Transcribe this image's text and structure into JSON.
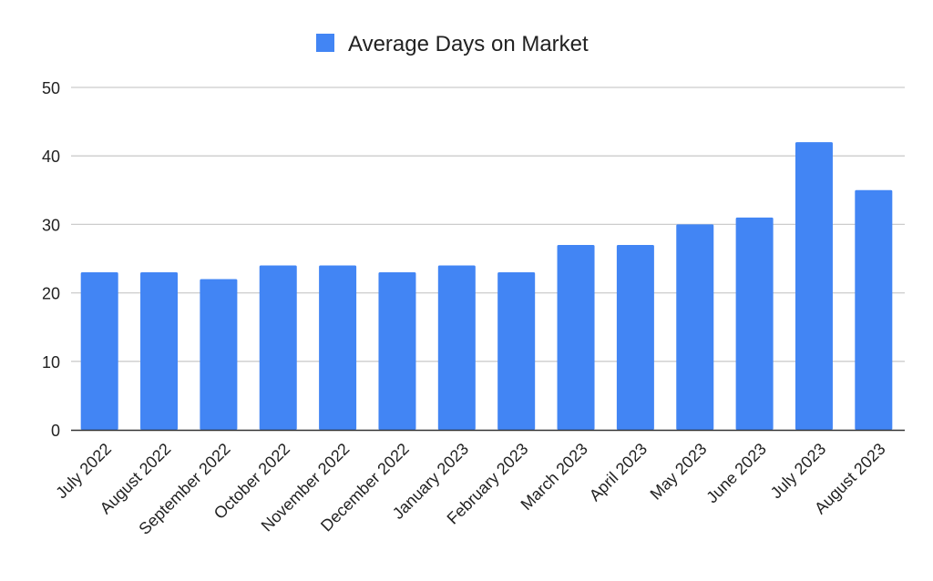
{
  "chart_data": {
    "type": "bar",
    "title": "",
    "xlabel": "",
    "ylabel": "",
    "categories": [
      "July 2022",
      "August 2022",
      "September 2022",
      "October 2022",
      "November 2022",
      "December 2022",
      "January 2023",
      "February 2023",
      "March 2023",
      "April 2023",
      "May 2023",
      "June 2023",
      "July 2023",
      "August 2023"
    ],
    "series": [
      {
        "name": "Average Days on Market",
        "color": "#4285f4",
        "values": [
          23,
          23,
          22,
          24,
          24,
          23,
          24,
          23,
          27,
          27,
          30,
          31,
          42,
          35
        ]
      }
    ],
    "ylim": [
      0,
      50
    ],
    "yticks": [
      "0",
      "10",
      "20",
      "30",
      "40",
      "50"
    ],
    "grid": true,
    "legend": "top-center",
    "colors": {
      "bar": "#4285f4",
      "grid": "#cccccc",
      "axis": "#333333",
      "text": "#222222"
    }
  }
}
